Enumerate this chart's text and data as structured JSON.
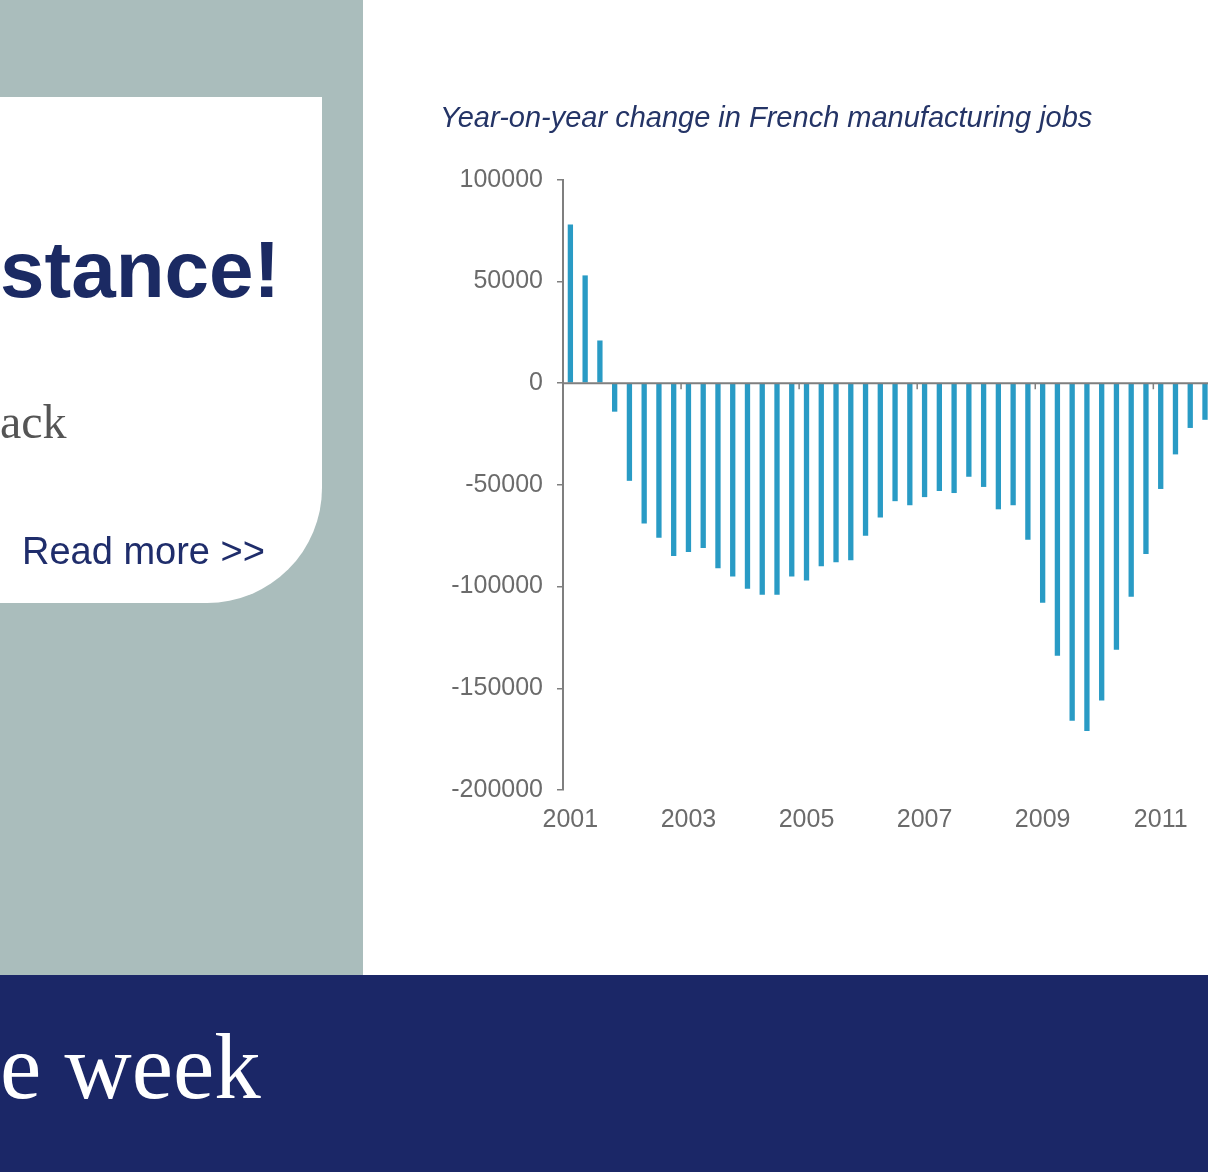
{
  "chart_data": [
    {
      "type": "other",
      "title": "stance!",
      "annotations": [
        "ack",
        "Read more >>"
      ]
    },
    {
      "type": "bar",
      "title": "Year-on-year change in French manufacturing jobs",
      "categories": [
        "2001",
        null,
        null,
        null,
        null,
        null,
        null,
        null,
        "2003",
        null,
        null,
        null,
        null,
        null,
        null,
        null,
        "2005",
        null,
        null,
        null,
        null,
        null,
        null,
        null,
        "2007",
        null,
        null,
        null,
        null,
        null,
        null,
        null,
        "2009",
        null,
        null,
        null,
        null,
        null,
        null,
        null,
        "2011",
        null,
        null,
        null
      ],
      "values": [
        78000,
        53000,
        21000,
        -14000,
        -48000,
        -69000,
        -76000,
        -85000,
        -83000,
        -81000,
        -91000,
        -95000,
        -101000,
        -104000,
        -104000,
        -95000,
        -97000,
        -90000,
        -88000,
        -87000,
        -75000,
        -66000,
        -58000,
        -60000,
        -56000,
        -53000,
        -54000,
        -46000,
        -51000,
        -62000,
        -60000,
        -77000,
        -108000,
        -134000,
        -166000,
        -171000,
        -156000,
        -131000,
        -105000,
        -84000,
        -52000,
        -35000,
        -22000,
        -18000
      ],
      "color": "#299bc5",
      "ylim": [
        -200000,
        100000
      ],
      "yticks": [
        -200000,
        -150000,
        -100000,
        -50000,
        0,
        50000,
        100000
      ]
    },
    {
      "type": "other",
      "title": "e week"
    }
  ]
}
